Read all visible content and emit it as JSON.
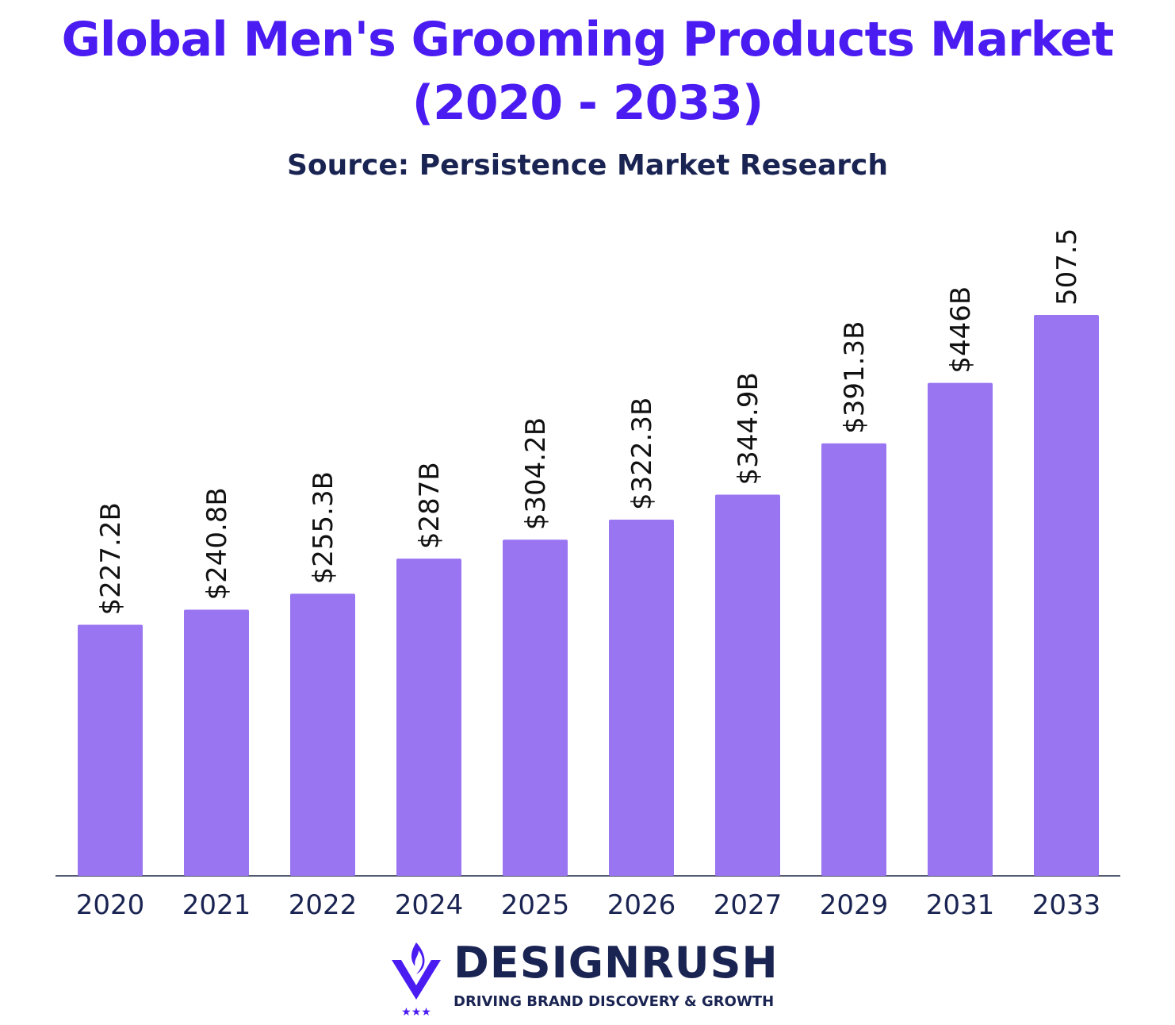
{
  "header": {
    "title_line1": "Global Men's Grooming Products Market",
    "title_line2": "(2020 - 2033)",
    "subtitle": "Source: Persistence Market Research"
  },
  "chart_data": {
    "type": "bar",
    "title": "Global Men's Grooming Products Market (2020 - 2033)",
    "subtitle": "Source: Persistence Market Research",
    "categories": [
      "2020",
      "2021",
      "2022",
      "2024",
      "2025",
      "2026",
      "2027",
      "2029",
      "2031",
      "2033"
    ],
    "values": [
      227.2,
      240.8,
      255.3,
      287,
      304.2,
      322.3,
      344.9,
      391.3,
      446,
      507.5
    ],
    "data_labels": [
      "$227.2B",
      "$240.8B",
      "$255.3B",
      "$287B",
      "$304.2B",
      "$322.3B",
      "$344.9B",
      "$391.3B",
      "$446B",
      "507.5"
    ],
    "unit": "USD billion",
    "ylim": [
      0,
      507.5
    ],
    "grid": false,
    "legend": "none",
    "bar_color": "#9975f2",
    "axis_color": "#555a73",
    "tick_label_color": "#1a2452"
  },
  "branding": {
    "logo_name": "DESIGNRUSH",
    "tagline": "DRIVING BRAND DISCOVERY & GROWTH",
    "mark_icon": "flame-v-icon",
    "stars": "★★★",
    "brand_color": "#4b1cf2"
  },
  "colors": {
    "title": "#4b1cf2",
    "subtitle": "#1a2452"
  }
}
